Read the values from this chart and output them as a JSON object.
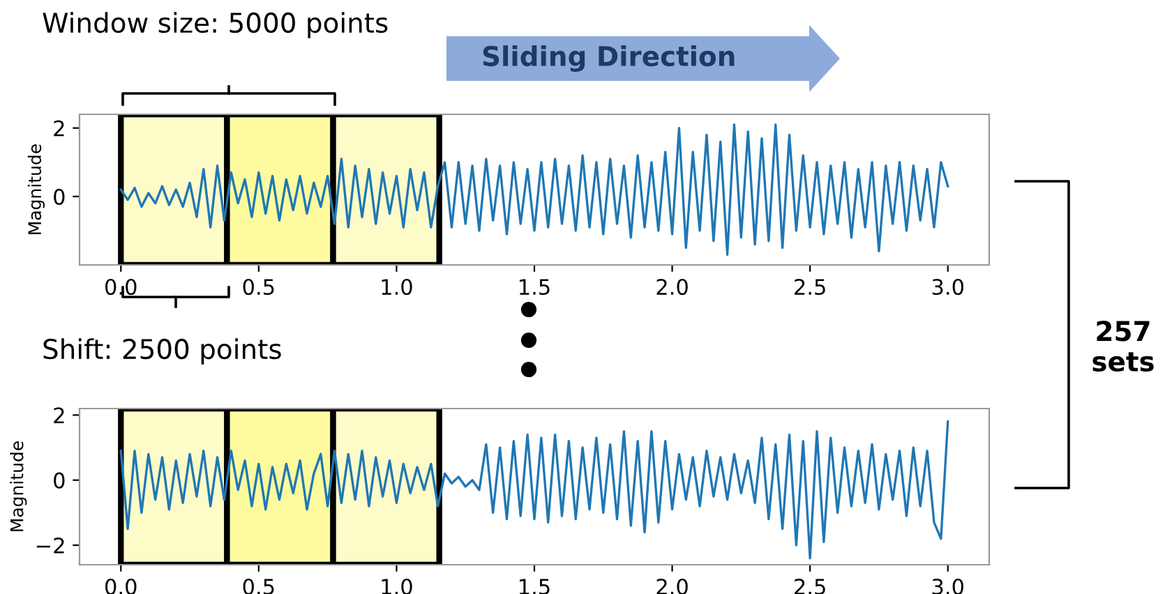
{
  "chart_data": [
    {
      "type": "line",
      "ylabel": "Magnitude",
      "annotations": [
        "Window size: 5000 points",
        "Sliding Direction",
        "Shift: 2500 points",
        "257\nsets"
      ],
      "x": [
        0,
        0.025,
        0.05,
        0.075,
        0.1,
        0.125,
        0.15,
        0.175,
        0.2,
        0.225,
        0.25,
        0.275,
        0.3,
        0.325,
        0.35,
        0.375,
        0.4,
        0.425,
        0.45,
        0.475,
        0.5,
        0.525,
        0.55,
        0.575,
        0.6,
        0.625,
        0.65,
        0.675,
        0.7,
        0.725,
        0.75,
        0.775,
        0.8,
        0.825,
        0.85,
        0.875,
        0.9,
        0.925,
        0.95,
        0.975,
        1.0,
        1.025,
        1.05,
        1.075,
        1.1,
        1.125,
        1.15,
        1.175,
        1.2,
        1.225,
        1.25,
        1.275,
        1.3,
        1.325,
        1.35,
        1.375,
        1.4,
        1.425,
        1.45,
        1.475,
        1.5,
        1.525,
        1.55,
        1.575,
        1.6,
        1.625,
        1.65,
        1.675,
        1.7,
        1.725,
        1.75,
        1.775,
        1.8,
        1.825,
        1.85,
        1.875,
        1.9,
        1.925,
        1.95,
        1.975,
        2.0,
        2.025,
        2.05,
        2.075,
        2.1,
        2.125,
        2.15,
        2.175,
        2.2,
        2.225,
        2.25,
        2.275,
        2.3,
        2.325,
        2.35,
        2.375,
        2.4,
        2.425,
        2.45,
        2.475,
        2.5,
        2.525,
        2.55,
        2.575,
        2.6,
        2.625,
        2.65,
        2.675,
        2.7,
        2.725,
        2.75,
        2.775,
        2.8,
        2.825,
        2.85,
        2.875,
        2.9,
        2.925,
        2.95,
        2.975,
        3.0
      ],
      "series": [
        {
          "color": "#1f77b4",
          "values": [
            0.2,
            -0.1,
            0.25,
            -0.3,
            0.1,
            -0.2,
            0.3,
            -0.25,
            0.2,
            -0.3,
            0.4,
            -0.6,
            0.8,
            -0.9,
            0.9,
            -0.7,
            0.7,
            -0.2,
            0.5,
            -0.6,
            0.7,
            -0.5,
            0.6,
            -0.7,
            0.5,
            -0.4,
            0.6,
            -0.5,
            0.4,
            -0.3,
            0.6,
            -0.8,
            1.1,
            -0.9,
            0.9,
            -0.6,
            0.8,
            -0.8,
            0.7,
            -0.5,
            0.6,
            -0.9,
            0.8,
            -0.4,
            0.7,
            -0.9,
            0.3,
            1.0,
            -0.9,
            1.0,
            -0.8,
            0.9,
            -1.0,
            1.1,
            -0.7,
            0.9,
            -1.1,
            1.0,
            -0.8,
            0.8,
            -1.0,
            1.0,
            -0.9,
            1.1,
            -0.8,
            0.9,
            -1.0,
            1.2,
            -0.9,
            1.0,
            -1.1,
            1.1,
            -0.8,
            0.9,
            -1.2,
            1.2,
            -0.9,
            1.0,
            -1.0,
            1.3,
            -1.1,
            2.0,
            -1.5,
            1.3,
            -1.0,
            1.8,
            -1.3,
            1.6,
            -1.7,
            2.1,
            -1.2,
            1.9,
            -1.4,
            1.7,
            -1.3,
            2.1,
            -1.5,
            1.8,
            -1.0,
            1.2,
            -0.9,
            1.0,
            -1.1,
            0.9,
            -0.8,
            1.0,
            -1.2,
            0.8,
            -0.9,
            1.0,
            -1.6,
            0.9,
            -0.8,
            1.0,
            -1.0,
            0.9,
            -0.7,
            0.8,
            -0.9,
            1.0,
            0.3
          ]
        }
      ],
      "bands": [
        {
          "axis": "x",
          "from": 0,
          "to": 0.385,
          "color": "#fdfbc8"
        },
        {
          "axis": "x",
          "from": 0.385,
          "to": 0.77,
          "color": "#fdfb9e"
        },
        {
          "axis": "x",
          "from": 0.77,
          "to": 1.155,
          "color": "#fdfbc8"
        }
      ],
      "xlim": [
        -0.15,
        3.15
      ],
      "ylim": [
        -2.0,
        2.4
      ],
      "xticks": [
        {
          "value": 0,
          "label": "0.0"
        },
        {
          "value": 0.5,
          "label": "0.5"
        },
        {
          "value": 1,
          "label": "1.0"
        },
        {
          "value": 1.5,
          "label": "1.5"
        },
        {
          "value": 2,
          "label": "2.0"
        },
        {
          "value": 2.5,
          "label": "2.5"
        },
        {
          "value": 3,
          "label": "3.0"
        }
      ],
      "yticks": [
        0,
        2
      ],
      "grid": false
    },
    {
      "type": "line",
      "ylabel": "Magnitude",
      "x": [
        0,
        0.025,
        0.05,
        0.075,
        0.1,
        0.125,
        0.15,
        0.175,
        0.2,
        0.225,
        0.25,
        0.275,
        0.3,
        0.325,
        0.35,
        0.375,
        0.4,
        0.425,
        0.45,
        0.475,
        0.5,
        0.525,
        0.55,
        0.575,
        0.6,
        0.625,
        0.65,
        0.675,
        0.7,
        0.725,
        0.75,
        0.775,
        0.8,
        0.825,
        0.85,
        0.875,
        0.9,
        0.925,
        0.95,
        0.975,
        1.0,
        1.025,
        1.05,
        1.075,
        1.1,
        1.125,
        1.15,
        1.175,
        1.2,
        1.225,
        1.25,
        1.275,
        1.3,
        1.325,
        1.35,
        1.375,
        1.4,
        1.425,
        1.45,
        1.475,
        1.5,
        1.525,
        1.55,
        1.575,
        1.6,
        1.625,
        1.65,
        1.675,
        1.7,
        1.725,
        1.75,
        1.775,
        1.8,
        1.825,
        1.85,
        1.875,
        1.9,
        1.925,
        1.95,
        1.975,
        2.0,
        2.025,
        2.05,
        2.075,
        2.1,
        2.125,
        2.15,
        2.175,
        2.2,
        2.225,
        2.25,
        2.275,
        2.3,
        2.325,
        2.35,
        2.375,
        2.4,
        2.425,
        2.45,
        2.475,
        2.5,
        2.525,
        2.55,
        2.575,
        2.6,
        2.625,
        2.65,
        2.675,
        2.7,
        2.725,
        2.75,
        2.775,
        2.8,
        2.825,
        2.85,
        2.875,
        2.9,
        2.925,
        2.95,
        2.975,
        3.0
      ],
      "series": [
        {
          "color": "#1f77b4",
          "values": [
            0.9,
            -1.5,
            0.9,
            -1.0,
            0.8,
            -0.6,
            0.7,
            -0.9,
            0.6,
            -0.7,
            0.8,
            -0.5,
            0.9,
            -0.8,
            0.7,
            -0.6,
            0.9,
            -0.3,
            0.6,
            -0.8,
            0.5,
            -0.9,
            0.4,
            -0.6,
            0.5,
            -0.4,
            0.6,
            -0.9,
            0.2,
            0.8,
            -0.8,
            0.9,
            -0.7,
            0.8,
            -0.6,
            0.9,
            -0.8,
            0.7,
            -0.5,
            0.6,
            -0.7,
            0.5,
            -0.4,
            0.4,
            -0.3,
            0.5,
            -0.8,
            0.2,
            -0.1,
            0.1,
            -0.2,
            0.0,
            -0.3,
            1.1,
            -1.0,
            1.0,
            -1.2,
            1.2,
            -1.1,
            1.4,
            -1.2,
            1.3,
            -1.3,
            1.4,
            -1.1,
            1.2,
            -1.2,
            1.0,
            -0.9,
            1.3,
            -1.0,
            1.1,
            -1.2,
            1.5,
            -1.4,
            1.2,
            -1.6,
            1.5,
            -1.3,
            1.2,
            -0.9,
            0.8,
            -0.6,
            0.7,
            -0.8,
            0.9,
            -0.5,
            0.7,
            -0.6,
            0.8,
            -0.4,
            0.6,
            -0.7,
            1.3,
            -1.2,
            1.1,
            -1.5,
            1.4,
            -2.0,
            1.2,
            -2.4,
            1.5,
            -1.9,
            1.3,
            -1.0,
            1.0,
            -0.8,
            0.9,
            -0.7,
            1.1,
            -0.9,
            0.8,
            -0.6,
            0.9,
            -1.1,
            1.0,
            -0.8,
            0.9,
            -1.3,
            -1.8,
            1.8
          ]
        }
      ],
      "bands": [
        {
          "axis": "x",
          "from": 0,
          "to": 0.385,
          "color": "#fdfbc8"
        },
        {
          "axis": "x",
          "from": 0.385,
          "to": 0.77,
          "color": "#fdfb9e"
        },
        {
          "axis": "x",
          "from": 0.77,
          "to": 1.155,
          "color": "#fdfbc8"
        }
      ],
      "xlim": [
        -0.15,
        3.15
      ],
      "ylim": [
        -2.6,
        2.2
      ],
      "xticks": [
        {
          "value": 0,
          "label": "0.0"
        },
        {
          "value": 0.5,
          "label": "0.5"
        },
        {
          "value": 1,
          "label": "1.0"
        },
        {
          "value": 1.5,
          "label": "1.5"
        },
        {
          "value": 2,
          "label": "2.0"
        },
        {
          "value": 2.5,
          "label": "2.5"
        },
        {
          "value": 3,
          "label": "3.0"
        }
      ],
      "yticks": [
        {
          "value": -2,
          "label": "−2"
        },
        0,
        2
      ],
      "grid": false
    }
  ]
}
